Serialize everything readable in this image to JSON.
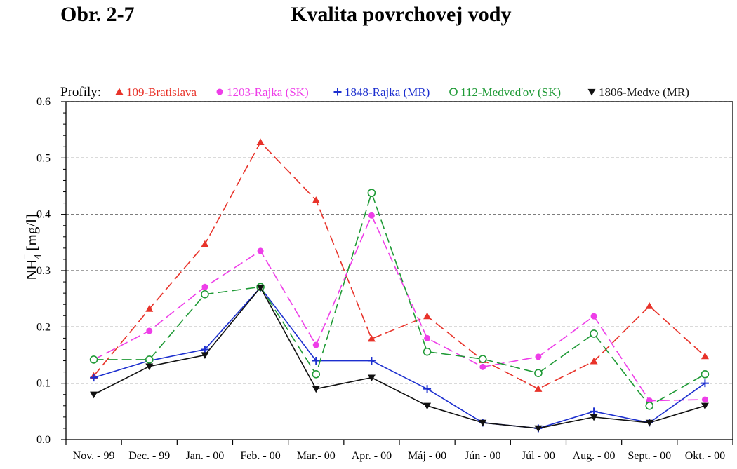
{
  "figure": {
    "label": "Obr. 2-7",
    "title": "Kvalita povrchovej vody"
  },
  "chart_data": {
    "type": "line",
    "legend_title": "Profily:",
    "ylabel_main": "NH",
    "ylabel_sub": "4",
    "ylabel_sup": "+",
    "ylabel_unit": " [mg/l]",
    "ylim": [
      0,
      0.6
    ],
    "yticks": [
      "0.0",
      "0.1",
      "0.2",
      "0.3",
      "0.4",
      "0.5",
      "0.6"
    ],
    "grid": true,
    "legend_position": "top",
    "categories": [
      "Nov. - 99",
      "Dec. - 99",
      "Jan. - 00",
      "Feb. - 00",
      "Mar.- 00",
      "Apr. - 00",
      "Máj - 00",
      "Jún - 00",
      "Júl - 00",
      "Aug. - 00",
      "Sept. - 00",
      "Okt. - 00"
    ],
    "series": [
      {
        "name": "109-Bratislava",
        "color": "#e8332a",
        "marker": "triangle-up",
        "dash": true,
        "values": [
          0.113,
          0.232,
          0.347,
          0.528,
          0.425,
          0.179,
          0.219,
          0.141,
          0.09,
          0.139,
          0.237,
          0.148
        ]
      },
      {
        "name": "1203-Rajka (SK)",
        "color": "#ee3ee8",
        "marker": "circle-filled",
        "dash": true,
        "values": [
          0.142,
          0.193,
          0.271,
          0.335,
          0.168,
          0.398,
          0.18,
          0.129,
          0.147,
          0.219,
          0.069,
          0.071
        ]
      },
      {
        "name": "1848-Rajka (MR)",
        "color": "#1c2fcf",
        "marker": "plus",
        "dash": false,
        "values": [
          0.11,
          0.14,
          0.16,
          0.27,
          0.14,
          0.14,
          0.09,
          0.03,
          0.02,
          0.05,
          0.03,
          0.1
        ]
      },
      {
        "name": "112-Medveďov (SK)",
        "color": "#1f9a36",
        "marker": "circle-open",
        "dash": true,
        "values": [
          0.142,
          0.142,
          0.258,
          0.271,
          0.116,
          0.438,
          0.156,
          0.143,
          0.118,
          0.188,
          0.06,
          0.116
        ]
      },
      {
        "name": "1806-Medve (MR)",
        "color": "#111111",
        "marker": "triangle-down",
        "dash": false,
        "values": [
          0.08,
          0.13,
          0.15,
          0.27,
          0.09,
          0.11,
          0.06,
          0.03,
          0.02,
          0.04,
          0.03,
          0.06
        ]
      }
    ]
  }
}
